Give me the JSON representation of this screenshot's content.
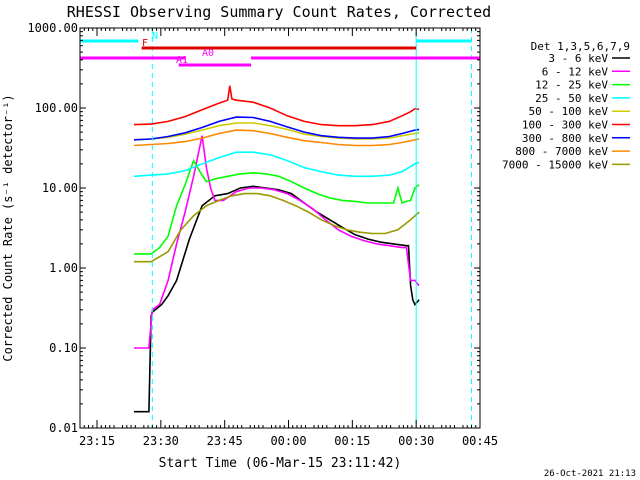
{
  "chart_data": {
    "type": "line",
    "title": "RHESSI Observing Summary Count Rates, Corrected",
    "xlabel": "Start Time (06-Mar-15 23:11:42)",
    "ylabel": "Corrected Count Rate (s⁻¹ detector⁻¹)",
    "yscale": "log",
    "ylim": [
      0.01,
      1000
    ],
    "xlim_minutes": [
      -0.7,
      93.3
    ],
    "x_unit": "minutes after 06-Mar-15 23:11:42",
    "x_tick_labels": [
      "23:15",
      "23:30",
      "23:45",
      "00:00",
      "00:15",
      "00:30",
      "00:45"
    ],
    "x_tick_minutes": [
      3.3,
      18.3,
      33.3,
      48.3,
      63.3,
      78.3,
      93.3
    ],
    "y_tick_labels": [
      "0.01",
      "0.10",
      "1.00",
      "10.00",
      "100.00",
      "1000.00"
    ],
    "y_tick_values": [
      0.01,
      0.1,
      1,
      10,
      100,
      1000
    ],
    "legend_title": "Det 1,3,5,6,7,9",
    "legend_position": "right, outside plot",
    "timestamp": "26-Oct-2021 21:13",
    "series": [
      {
        "name": "3 - 6 keV",
        "color": "#000000",
        "x": [
          12.0,
          15.0,
          15.5,
          16.0,
          16.3,
          17.0,
          18.5,
          20.0,
          22.0,
          25.0,
          28.0,
          31.0,
          34.0,
          37.0,
          40.0,
          43.0,
          46.0,
          49.0,
          52.0,
          55.0,
          58.0,
          61.0,
          64.0,
          67.0,
          70.0,
          73.0,
          76.0,
          76.5,
          77.0,
          77.5,
          78.0,
          79.0
        ],
        "y": [
          0.016,
          0.016,
          0.016,
          0.25,
          0.28,
          0.3,
          0.35,
          0.45,
          0.7,
          2.3,
          6.0,
          8.0,
          8.5,
          10.0,
          10.5,
          10.0,
          9.5,
          8.5,
          6.5,
          5.0,
          4.0,
          3.2,
          2.6,
          2.3,
          2.1,
          2.0,
          1.9,
          1.9,
          0.6,
          0.4,
          0.35,
          0.4
        ]
      },
      {
        "name": "6 - 12 keV",
        "color": "#ff00ff",
        "x": [
          12.0,
          15.0,
          15.5,
          16.3,
          18.0,
          20.0,
          22.0,
          24.0,
          26.0,
          28.0,
          29.0,
          30.0,
          31.0,
          33.0,
          36.0,
          39.0,
          42.0,
          45.0,
          48.0,
          51.0,
          54.0,
          57.0,
          60.0,
          63.0,
          66.0,
          69.0,
          72.0,
          75.0,
          76.0,
          77.0,
          78.0,
          79.0
        ],
        "y": [
          0.1,
          0.1,
          0.1,
          0.3,
          0.35,
          0.7,
          2.0,
          5.0,
          14.0,
          45.0,
          18.0,
          10.0,
          7.0,
          7.0,
          9.0,
          10.0,
          10.0,
          9.5,
          8.5,
          7.0,
          5.5,
          4.0,
          3.0,
          2.5,
          2.2,
          2.0,
          1.9,
          1.8,
          1.8,
          0.7,
          0.7,
          0.6
        ]
      },
      {
        "name": "12 - 25 keV",
        "color": "#00ff00",
        "x": [
          12.0,
          16.0,
          18.0,
          20.0,
          22.0,
          24.0,
          26.0,
          27.5,
          29.0,
          31.0,
          34.0,
          37.0,
          40.0,
          43.0,
          46.0,
          49.0,
          52.0,
          55.0,
          58.0,
          61.0,
          64.0,
          67.0,
          70.0,
          73.0,
          74.0,
          75.0,
          76.0,
          77.0,
          78.0,
          79.0
        ],
        "y": [
          1.5,
          1.5,
          1.8,
          2.5,
          6.0,
          11.0,
          22.0,
          16.0,
          12.0,
          13.0,
          14.0,
          15.0,
          15.5,
          15.0,
          14.0,
          12.0,
          10.0,
          8.5,
          7.5,
          7.0,
          6.8,
          6.5,
          6.5,
          6.5,
          10.0,
          6.5,
          6.8,
          7.0,
          10.0,
          11.0
        ]
      },
      {
        "name": "25 - 50 keV",
        "color": "#00ffff",
        "x": [
          12.0,
          16.0,
          20.0,
          24.0,
          28.0,
          32.0,
          36.0,
          40.0,
          44.0,
          48.0,
          52.0,
          56.0,
          60.0,
          64.0,
          68.0,
          72.0,
          75.0,
          78.0,
          79.0
        ],
        "y": [
          14.0,
          14.5,
          15.0,
          16.5,
          20.0,
          24.0,
          28.0,
          28.0,
          26.0,
          22.0,
          18.0,
          16.0,
          14.5,
          14.0,
          14.0,
          14.5,
          16.0,
          20.0,
          21.0
        ]
      },
      {
        "name": "50 - 100 keV",
        "color": "#cccc00",
        "x": [
          12.0,
          16.0,
          20.0,
          24.0,
          28.0,
          32.0,
          36.0,
          40.0,
          44.0,
          48.0,
          52.0,
          56.0,
          60.0,
          64.0,
          68.0,
          72.0,
          75.0,
          78.0,
          79.0
        ],
        "y": [
          40.0,
          41.0,
          43.0,
          47.0,
          53.0,
          60.0,
          65.0,
          65.0,
          60.0,
          54.0,
          47.0,
          44.0,
          42.0,
          41.0,
          41.0,
          42.0,
          45.0,
          48.0,
          49.0
        ]
      },
      {
        "name": "100 - 300 keV",
        "color": "#ff0000",
        "x": [
          12.0,
          16.0,
          20.0,
          24.0,
          28.0,
          32.0,
          34.0,
          34.5,
          35.0,
          36.0,
          40.0,
          44.0,
          48.0,
          52.0,
          56.0,
          60.0,
          64.0,
          68.0,
          72.0,
          75.0,
          77.0,
          78.0,
          79.0
        ],
        "y": [
          62.0,
          63.0,
          68.0,
          78.0,
          95.0,
          115.0,
          125.0,
          190.0,
          130.0,
          125.0,
          118.0,
          100.0,
          80.0,
          68.0,
          62.0,
          60.0,
          60.0,
          62.0,
          68.0,
          80.0,
          90.0,
          98.0,
          96.0
        ]
      },
      {
        "name": "300 - 800 keV",
        "color": "#0000ff",
        "x": [
          12.0,
          16.0,
          20.0,
          24.0,
          28.0,
          32.0,
          36.0,
          40.0,
          44.0,
          48.0,
          52.0,
          56.0,
          60.0,
          64.0,
          68.0,
          72.0,
          75.0,
          78.0,
          79.0
        ],
        "y": [
          40.0,
          41.0,
          44.0,
          49.0,
          57.0,
          68.0,
          77.0,
          76.0,
          68.0,
          58.0,
          50.0,
          45.0,
          43.0,
          42.0,
          42.0,
          44.0,
          48.0,
          53.0,
          54.0
        ]
      },
      {
        "name": "800 - 7000 keV",
        "color": "#ff8800",
        "x": [
          12.0,
          16.0,
          20.0,
          24.0,
          28.0,
          32.0,
          36.0,
          40.0,
          44.0,
          48.0,
          52.0,
          56.0,
          60.0,
          64.0,
          68.0,
          72.0,
          75.0,
          78.0,
          79.0
        ],
        "y": [
          34.0,
          35.0,
          36.0,
          38.0,
          42.0,
          48.0,
          53.0,
          52.0,
          48.0,
          43.0,
          39.0,
          37.0,
          35.0,
          34.0,
          34.0,
          35.0,
          37.0,
          40.0,
          41.0
        ]
      },
      {
        "name": "7000 - 15000 keV",
        "color": "#999900",
        "x": [
          12.0,
          16.0,
          20.0,
          23.0,
          26.0,
          29.0,
          32.0,
          35.0,
          38.0,
          41.0,
          44.0,
          47.0,
          50.0,
          53.0,
          56.0,
          59.0,
          62.0,
          65.0,
          68.0,
          71.0,
          74.0,
          77.0,
          79.0
        ],
        "y": [
          1.2,
          1.2,
          1.6,
          3.0,
          4.5,
          6.0,
          7.0,
          8.0,
          8.5,
          8.5,
          8.0,
          7.0,
          6.0,
          5.0,
          4.0,
          3.4,
          3.0,
          2.8,
          2.7,
          2.7,
          3.0,
          4.0,
          5.0
        ]
      }
    ],
    "annotations": {
      "vertical_lines_minutes": [
        {
          "x": 16.3,
          "color": "#00ffff",
          "style": "dashed"
        },
        {
          "x": 78.3,
          "color": "#00ffff",
          "style": "solid"
        },
        {
          "x": 91.3,
          "color": "#00ffff",
          "style": "dashed"
        }
      ],
      "state_bars": [
        {
          "label": "N",
          "color": "#00ffff",
          "segments": [
            [
              -0.7,
              13.0
            ],
            [
              78.3,
              91.3
            ]
          ]
        },
        {
          "label": "F",
          "color": "#dd0000",
          "segments": [
            [
              13.8,
              78.3
            ]
          ]
        },
        {
          "label": "A0",
          "color": "#ff00ff",
          "segments": [
            [
              -0.7,
              24.0
            ],
            [
              39.5,
              93.3
            ]
          ]
        },
        {
          "label": "A1",
          "color": "#ff00ff",
          "segments": [
            [
              22.5,
              39.5
            ]
          ]
        }
      ]
    }
  }
}
